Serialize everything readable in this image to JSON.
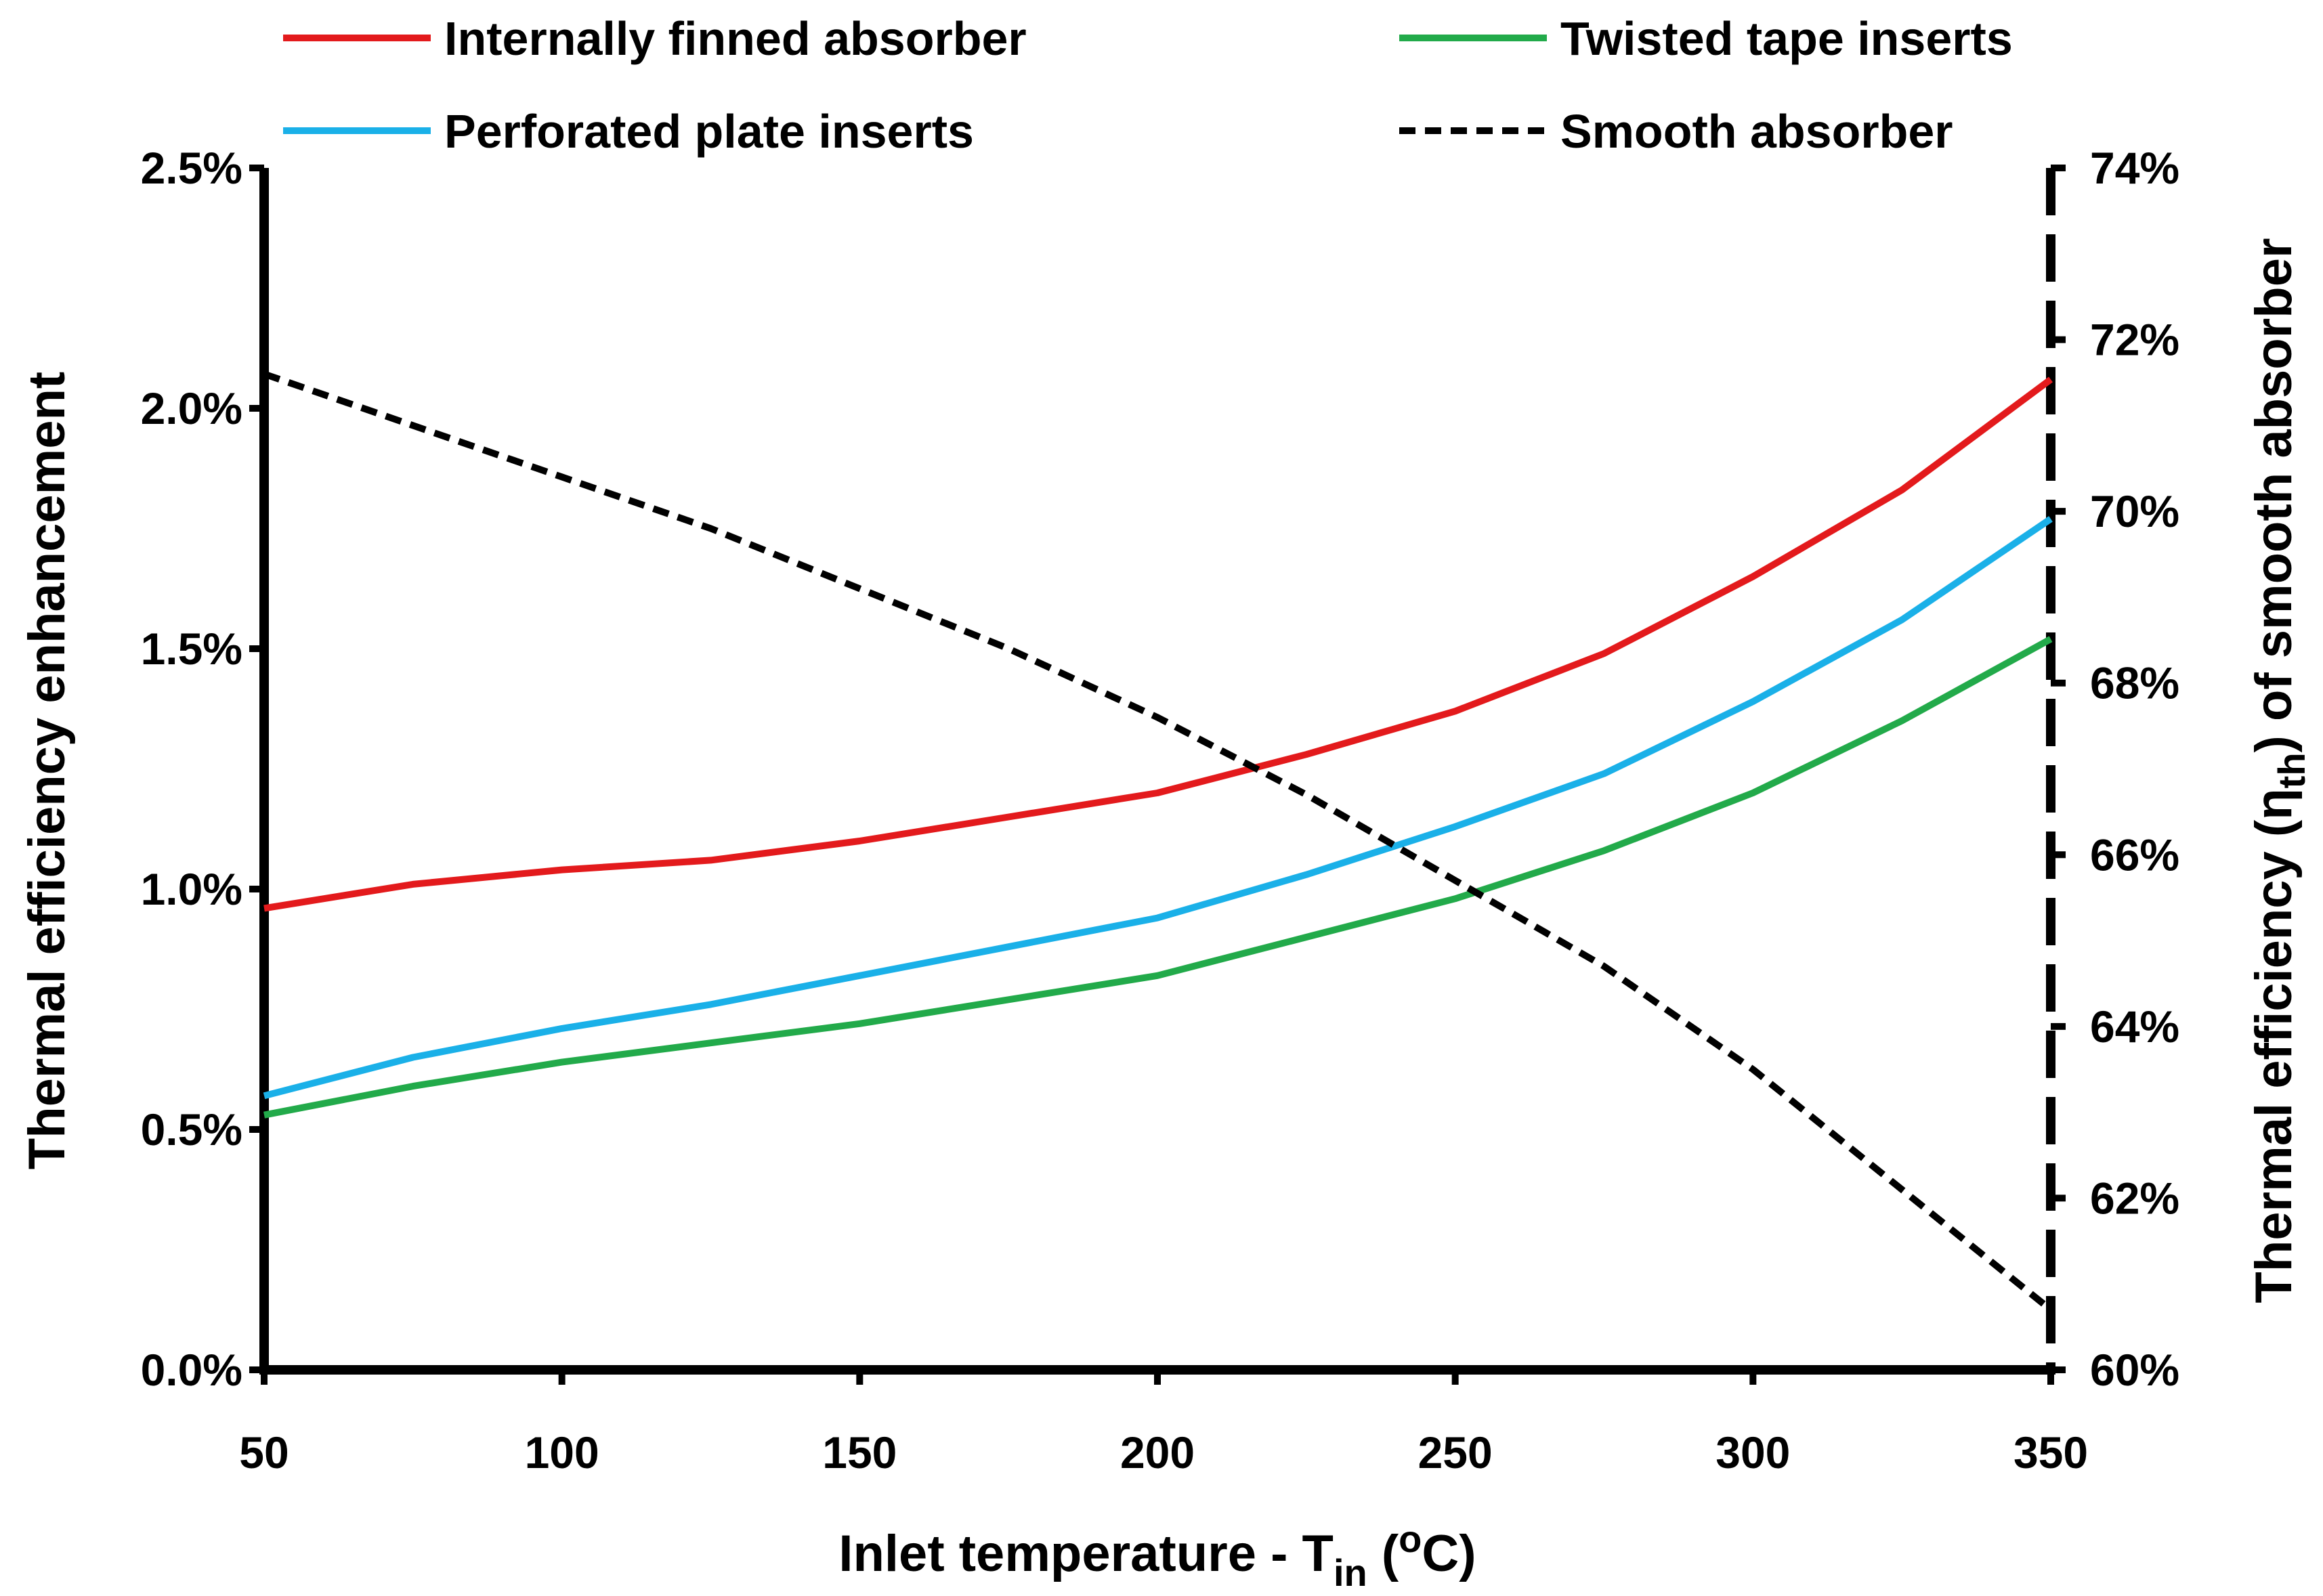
{
  "chart_data": {
    "type": "line",
    "x_axis": {
      "label_main": "Inlet temperature - T",
      "label_sub": "in",
      "label_unit_open": " (",
      "label_sup": "o",
      "label_unit_close": "C)",
      "range": [
        50,
        350
      ],
      "ticks": [
        50,
        100,
        150,
        200,
        250,
        300,
        350
      ],
      "tick_labels": [
        "50",
        "100",
        "150",
        "200",
        "250",
        "300",
        "350"
      ]
    },
    "y_axis_left": {
      "label": "Thermal efficiency enhancement",
      "range": [
        0,
        2.5
      ],
      "ticks": [
        0,
        0.5,
        1.0,
        1.5,
        2.0,
        2.5
      ],
      "tick_labels": [
        "0.0%",
        "0.5%",
        "1.0%",
        "1.5%",
        "2.0%",
        "2.5%"
      ]
    },
    "y_axis_right": {
      "label_main": "Thermal efficiency (η",
      "label_sub": "th",
      "label_tail": ") of smooth absorber",
      "range": [
        60,
        74
      ],
      "ticks": [
        60,
        62,
        64,
        66,
        68,
        70,
        72,
        74
      ],
      "tick_labels": [
        "60%",
        "62%",
        "64%",
        "66%",
        "68%",
        "70%",
        "72%",
        "74%"
      ]
    },
    "x": [
      50,
      75,
      100,
      125,
      150,
      175,
      200,
      225,
      250,
      275,
      300,
      325,
      350
    ],
    "series": [
      {
        "name": "Internally finned absorber",
        "axis": "left",
        "color": "#e31a1c",
        "style": "solid",
        "values": [
          0.96,
          1.01,
          1.04,
          1.06,
          1.1,
          1.15,
          1.2,
          1.28,
          1.37,
          1.49,
          1.65,
          1.83,
          2.06
        ]
      },
      {
        "name": "Twisted tape inserts",
        "axis": "left",
        "color": "#22aa4a",
        "style": "solid",
        "values": [
          0.53,
          0.59,
          0.64,
          0.68,
          0.72,
          0.77,
          0.82,
          0.9,
          0.98,
          1.08,
          1.2,
          1.35,
          1.52
        ]
      },
      {
        "name": "Perforated plate inserts",
        "axis": "left",
        "color": "#1ab0e8",
        "style": "solid",
        "values": [
          0.57,
          0.65,
          0.71,
          0.76,
          0.82,
          0.88,
          0.94,
          1.03,
          1.13,
          1.24,
          1.39,
          1.56,
          1.77
        ]
      },
      {
        "name": "Smooth absorber",
        "axis": "right",
        "color": "#000000",
        "style": "dashed",
        "values": [
          71.6,
          71.0,
          70.4,
          69.8,
          69.1,
          68.4,
          67.6,
          66.7,
          65.7,
          64.7,
          63.5,
          62.1,
          60.7
        ]
      }
    ]
  }
}
